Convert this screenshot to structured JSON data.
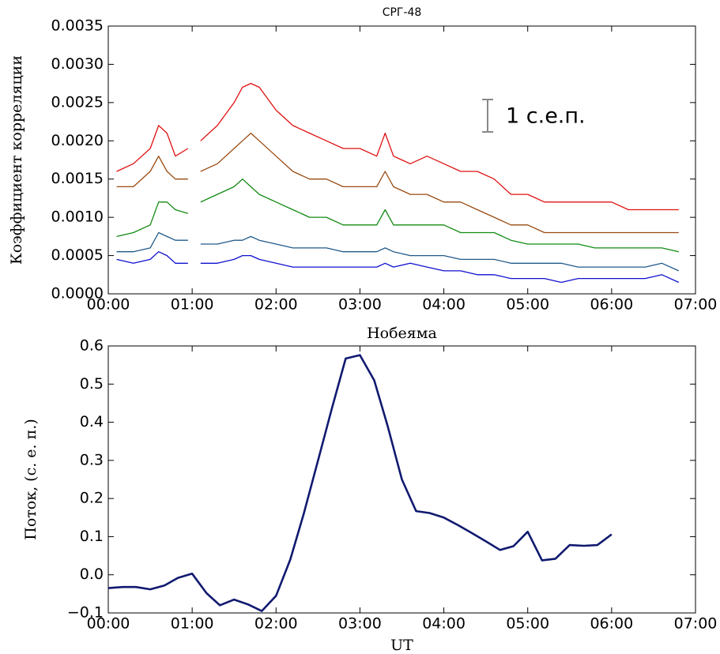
{
  "chart_data": [
    {
      "type": "line",
      "title": "СРГ-48",
      "y_label": "Коэффициент корреляции",
      "annotation": "1 с.е.п.",
      "x": [
        0.1,
        0.3,
        0.5,
        0.6,
        0.7,
        0.8,
        0.95,
        1.0,
        1.1,
        1.3,
        1.5,
        1.6,
        1.7,
        1.8,
        2.0,
        2.2,
        2.4,
        2.6,
        2.8,
        3.0,
        3.2,
        3.3,
        3.4,
        3.6,
        3.8,
        4.0,
        4.2,
        4.4,
        4.6,
        4.8,
        5.0,
        5.2,
        5.4,
        5.6,
        5.8,
        6.0,
        6.2,
        6.4,
        6.6,
        6.8
      ],
      "series": [
        {
          "color": "#e01010",
          "values": [
            0.0016,
            0.0017,
            0.0019,
            0.0022,
            0.0021,
            0.0018,
            0.0019,
            null,
            0.002,
            0.0022,
            0.0025,
            0.0027,
            0.00275,
            0.0027,
            0.0024,
            0.0022,
            0.0021,
            0.002,
            0.0019,
            0.0019,
            0.0018,
            0.0021,
            0.0018,
            0.0017,
            0.0018,
            0.0017,
            0.0016,
            0.0016,
            0.0015,
            0.0013,
            0.0013,
            0.0012,
            0.0012,
            0.0012,
            0.0012,
            0.0012,
            0.0011,
            0.0011,
            0.0011,
            0.0011
          ]
        },
        {
          "color": "#9a4a10",
          "values": [
            0.0014,
            0.0014,
            0.0016,
            0.0018,
            0.0016,
            0.0015,
            0.0015,
            null,
            0.0016,
            0.0017,
            0.0019,
            0.002,
            0.0021,
            0.002,
            0.0018,
            0.0016,
            0.0015,
            0.0015,
            0.0014,
            0.0014,
            0.0014,
            0.0016,
            0.0014,
            0.0013,
            0.0013,
            0.0012,
            0.0012,
            0.0011,
            0.001,
            0.0009,
            0.0009,
            0.0008,
            0.0008,
            0.0008,
            0.0008,
            0.0008,
            0.0008,
            0.0008,
            0.0008,
            0.0008
          ]
        },
        {
          "color": "#128a12",
          "values": [
            0.00075,
            0.0008,
            0.0009,
            0.0012,
            0.0012,
            0.0011,
            0.00105,
            null,
            0.0012,
            0.0013,
            0.0014,
            0.0015,
            0.0014,
            0.0013,
            0.0012,
            0.0011,
            0.001,
            0.001,
            0.0009,
            0.0009,
            0.0009,
            0.0011,
            0.0009,
            0.0009,
            0.0009,
            0.0009,
            0.0008,
            0.0008,
            0.0008,
            0.0007,
            0.00065,
            0.00065,
            0.00065,
            0.00065,
            0.0006,
            0.0006,
            0.0006,
            0.0006,
            0.0006,
            0.00055
          ]
        },
        {
          "color": "#205a8a",
          "values": [
            0.00055,
            0.00055,
            0.0006,
            0.0008,
            0.00075,
            0.0007,
            0.0007,
            null,
            0.00065,
            0.00065,
            0.0007,
            0.0007,
            0.00075,
            0.0007,
            0.00065,
            0.0006,
            0.0006,
            0.0006,
            0.00055,
            0.00055,
            0.00055,
            0.0006,
            0.00055,
            0.0005,
            0.0005,
            0.0005,
            0.00045,
            0.00045,
            0.00045,
            0.0004,
            0.0004,
            0.0004,
            0.0004,
            0.00035,
            0.00035,
            0.00035,
            0.00035,
            0.00035,
            0.0004,
            0.0003
          ]
        },
        {
          "color": "#1010d0",
          "values": [
            0.00045,
            0.0004,
            0.00045,
            0.00055,
            0.0005,
            0.0004,
            0.0004,
            null,
            0.0004,
            0.0004,
            0.00045,
            0.0005,
            0.0005,
            0.00045,
            0.0004,
            0.00035,
            0.00035,
            0.00035,
            0.00035,
            0.00035,
            0.00035,
            0.0004,
            0.00035,
            0.0004,
            0.00035,
            0.0003,
            0.0003,
            0.00025,
            0.00025,
            0.0002,
            0.0002,
            0.0002,
            0.00015,
            0.0002,
            0.0002,
            0.0002,
            0.0002,
            0.0002,
            0.00025,
            0.00015
          ]
        }
      ],
      "xlim": [
        0,
        7
      ],
      "xticks": [
        {
          "value": 0,
          "label": "00:00"
        },
        {
          "value": 1,
          "label": "01:00"
        },
        {
          "value": 2,
          "label": "02:00"
        },
        {
          "value": 3,
          "label": "03:00"
        },
        {
          "value": 4,
          "label": "04:00"
        },
        {
          "value": 5,
          "label": "05:00"
        },
        {
          "value": 6,
          "label": "06:00"
        },
        {
          "value": 7,
          "label": "07:00"
        }
      ],
      "ylim": [
        0,
        0.0035
      ],
      "yticks": [
        {
          "value": 0,
          "label": "0.0000"
        },
        {
          "value": 0.0005,
          "label": "0.0005"
        },
        {
          "value": 0.001,
          "label": "0.0010"
        },
        {
          "value": 0.0015,
          "label": "0.0015"
        },
        {
          "value": 0.002,
          "label": "0.0020"
        },
        {
          "value": 0.0025,
          "label": "0.0025"
        },
        {
          "value": 0.003,
          "label": "0.0030"
        },
        {
          "value": 0.0035,
          "label": "0.0035"
        }
      ]
    },
    {
      "type": "line",
      "title": "Нобеяма",
      "y_label": "Поток, (с. е. п.)",
      "x_label": "UT",
      "x": [
        0,
        0.17,
        0.33,
        0.5,
        0.67,
        0.83,
        1.0,
        1.17,
        1.33,
        1.5,
        1.67,
        1.83,
        2.0,
        2.17,
        2.33,
        2.5,
        2.67,
        2.83,
        3.0,
        3.17,
        3.33,
        3.5,
        3.67,
        3.83,
        4.0,
        4.17,
        4.33,
        4.5,
        4.67,
        4.83,
        5.0,
        5.17,
        5.33,
        5.5,
        5.67,
        5.83,
        6.0
      ],
      "series": [
        {
          "color": "#101a70",
          "values": [
            -0.035,
            -0.032,
            -0.032,
            -0.038,
            -0.028,
            -0.008,
            0.003,
            -0.048,
            -0.08,
            -0.065,
            -0.078,
            -0.095,
            -0.055,
            0.04,
            0.16,
            0.3,
            0.44,
            0.567,
            0.576,
            0.51,
            0.39,
            0.25,
            0.167,
            0.162,
            0.15,
            0.13,
            0.11,
            0.088,
            0.065,
            0.075,
            0.113,
            0.038,
            0.042,
            0.078,
            0.076,
            0.078,
            0.106
          ]
        }
      ],
      "xlim": [
        0,
        7
      ],
      "xticks": [
        {
          "value": 0,
          "label": "00:00"
        },
        {
          "value": 1,
          "label": "01:00"
        },
        {
          "value": 2,
          "label": "02:00"
        },
        {
          "value": 3,
          "label": "03:00"
        },
        {
          "value": 4,
          "label": "04:00"
        },
        {
          "value": 5,
          "label": "05:00"
        },
        {
          "value": 6,
          "label": "06:00"
        },
        {
          "value": 7,
          "label": "07:00"
        }
      ],
      "ylim": [
        -0.1,
        0.6
      ],
      "yticks": [
        {
          "value": -0.1,
          "label": "−0.1"
        },
        {
          "value": 0,
          "label": "0.0"
        },
        0.1,
        0.2,
        0.3,
        0.4,
        0.5,
        0.6
      ]
    }
  ]
}
